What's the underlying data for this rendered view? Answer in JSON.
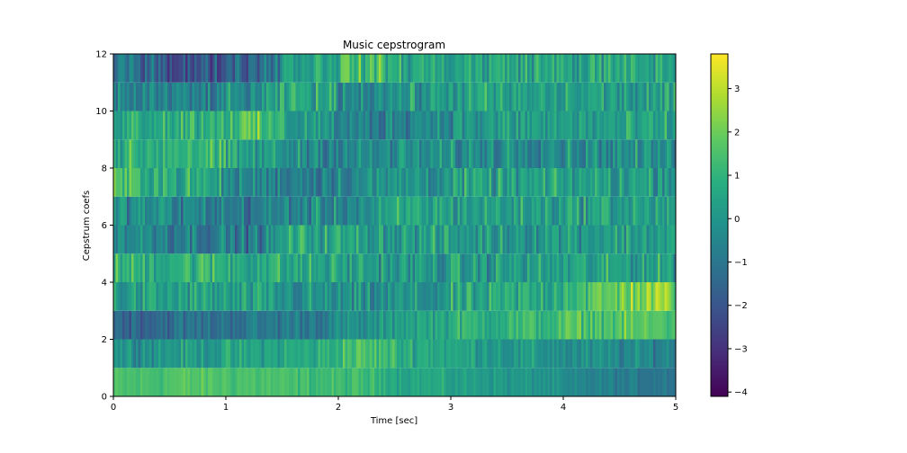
{
  "chart_data": {
    "type": "heatmap",
    "title": "Music cepstrogram",
    "xlabel": "Time [sec]",
    "ylabel": "Cepstrum coefs",
    "xlim": [
      0,
      5
    ],
    "ylim": [
      0,
      12
    ],
    "x_ticks": [
      "0",
      "1",
      "2",
      "3",
      "4",
      "5"
    ],
    "y_ticks": [
      "0",
      "2",
      "4",
      "6",
      "8",
      "10",
      "12"
    ],
    "colormap": "viridis",
    "colorbar": {
      "range": [
        -4.1,
        3.8
      ],
      "ticks": [
        "−4",
        "−3",
        "−2",
        "−1",
        "0",
        "1",
        "2",
        "3"
      ],
      "tick_values": [
        -4,
        -3,
        -2,
        -1,
        0,
        1,
        2,
        3
      ]
    },
    "rows": 12,
    "time_segments": [
      0,
      0.5,
      1,
      1.5,
      2,
      2.5,
      3,
      3.5,
      4,
      4.5,
      5
    ],
    "row_means": [
      [
        1.4,
        1.6,
        1.5,
        1.3,
        1.2,
        0.6,
        0.3,
        0.0,
        -0.6,
        -0.9
      ],
      [
        0.0,
        0.2,
        0.4,
        0.6,
        1.4,
        0.8,
        0.4,
        0.0,
        -0.3,
        -0.5
      ],
      [
        -1.4,
        -1.2,
        -1.0,
        -0.8,
        -0.3,
        0.5,
        0.9,
        1.1,
        1.5,
        1.6
      ],
      [
        0.2,
        0.3,
        0.1,
        -0.2,
        -0.4,
        -0.2,
        0.3,
        0.6,
        1.4,
        2.3
      ],
      [
        0.9,
        1.0,
        0.8,
        0.5,
        0.3,
        0.0,
        0.1,
        0.2,
        0.3,
        0.4
      ],
      [
        -0.3,
        -0.6,
        -0.9,
        0.6,
        0.4,
        0.2,
        0.1,
        0.2,
        0.3,
        0.3
      ],
      [
        -0.2,
        -0.6,
        -0.9,
        -0.5,
        -0.3,
        0.5,
        0.3,
        0.3,
        0.4,
        0.3
      ],
      [
        1.2,
        0.6,
        -0.5,
        -0.6,
        -0.3,
        0.0,
        0.2,
        0.2,
        0.3,
        0.3
      ],
      [
        0.8,
        1.2,
        0.2,
        -0.2,
        -0.5,
        -0.3,
        -0.3,
        0.0,
        -0.2,
        -0.3
      ],
      [
        0.9,
        1.0,
        1.4,
        0.3,
        -0.8,
        -0.3,
        0.0,
        0.2,
        0.2,
        0.2
      ],
      [
        -0.6,
        -0.8,
        -0.4,
        0.6,
        -0.2,
        0.0,
        0.4,
        0.2,
        0.3,
        0.1
      ],
      [
        -1.0,
        -2.2,
        -1.4,
        0.5,
        1.3,
        0.6,
        0.5,
        0.6,
        0.5,
        0.5
      ]
    ]
  }
}
